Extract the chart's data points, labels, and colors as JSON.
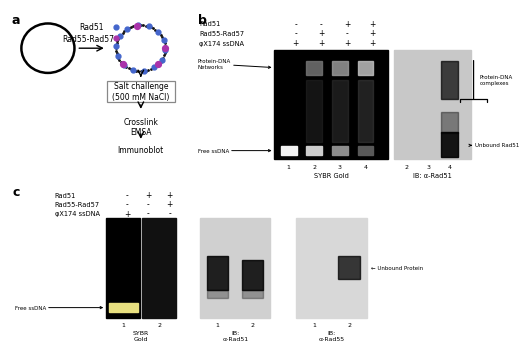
{
  "bg_color": "#ffffff",
  "panel_a": {
    "panel_label": "a",
    "box_text": "Salt challenge\n(500 mM NaCl)",
    "step1": "Crosslink\nEMSA",
    "step2": "Immunoblot"
  },
  "panel_b": {
    "panel_label": "b",
    "rows": [
      "Rad51",
      "Rad55-Rad57",
      "φX174 ssDNA"
    ],
    "signs": [
      [
        "-",
        "-",
        "+",
        "+"
      ],
      [
        "-",
        "+",
        "-",
        "+"
      ],
      [
        "+",
        "+",
        "+",
        "+"
      ]
    ],
    "gel1_label": "SYBR Gold",
    "gel2_label": "IB: α-Rad51",
    "lane_nums_g1": [
      "1",
      "2",
      "3",
      "4"
    ],
    "lane_nums_g2": [
      "2",
      "3",
      "4"
    ]
  },
  "panel_c": {
    "panel_label": "c",
    "rows": [
      "Rad51",
      "Rad55-Rad57",
      "φX174 ssDNA"
    ],
    "signs": [
      [
        "-",
        "+",
        "+"
      ],
      [
        "-",
        "-",
        "+"
      ],
      [
        "+",
        "-",
        "-"
      ]
    ],
    "gel1_label": "SYBR\nGold",
    "gel2_label": "IB:\nα-Rad51",
    "gel3_label": "IB:\nα-Rad55",
    "lane_nums": [
      "1",
      "2"
    ]
  }
}
